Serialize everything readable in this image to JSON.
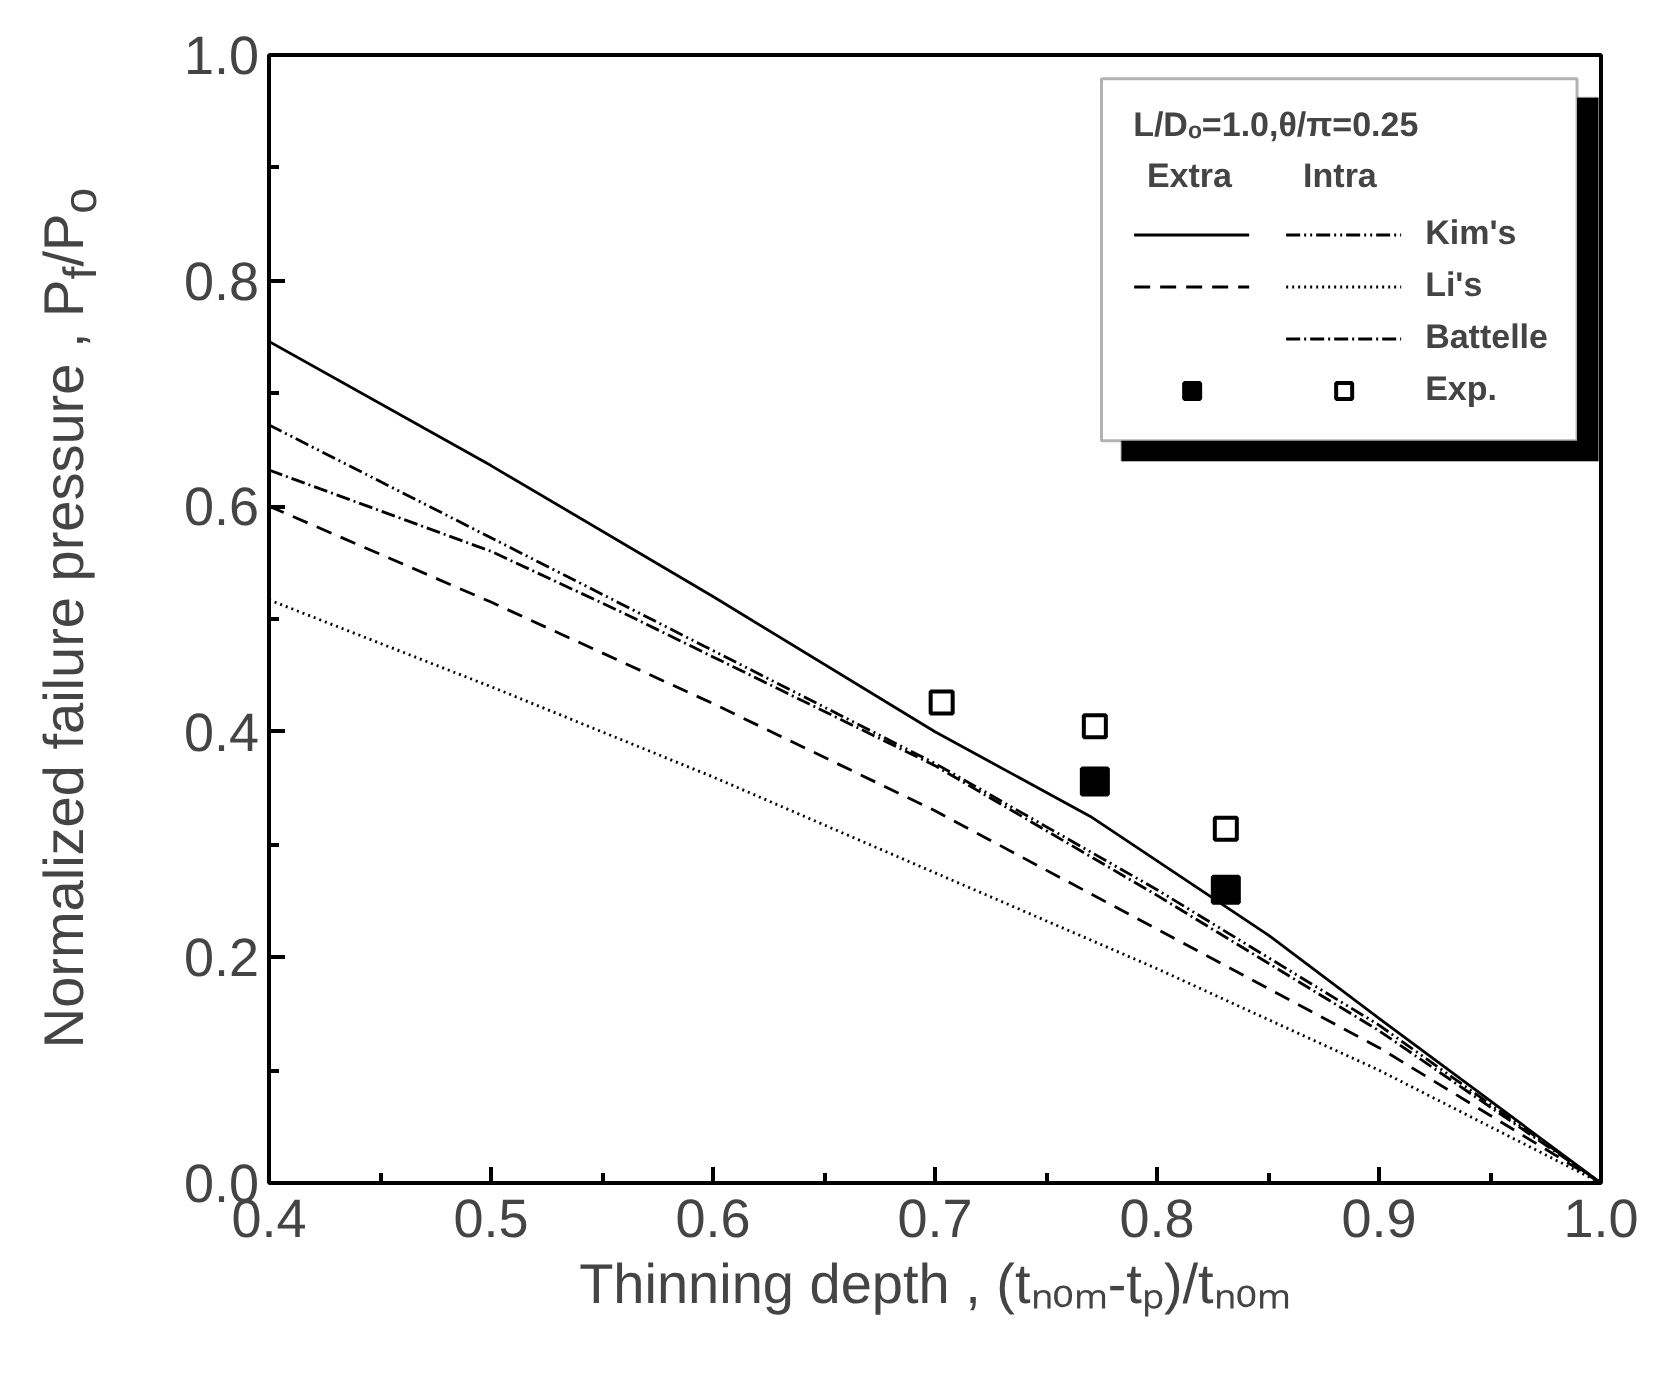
{
  "chart_data": {
    "type": "line",
    "xlabel": "Thinning depth , (tₙₒₘ-tₚ)/tₙₒₘ",
    "ylabel": "Normalized failure pressure , P$_{f}$/P$_{o}$",
    "legend_title": "L/Dₒ=1.0,θ/π=0.25",
    "annotations": [
      "Extra",
      "Intra"
    ],
    "xlim": [
      0.4,
      1.0
    ],
    "ylim": [
      0.0,
      1.0
    ],
    "xticks": [
      {
        "value": 0.4,
        "label": "0.4"
      },
      {
        "value": 0.5,
        "label": "0.5"
      },
      {
        "value": 0.6,
        "label": "0.6"
      },
      {
        "value": 0.7,
        "label": "0.7"
      },
      {
        "value": 0.8,
        "label": "0.8"
      },
      {
        "value": 0.9,
        "label": "0.9"
      },
      {
        "value": 1.0,
        "label": "1.0"
      }
    ],
    "yticks": [
      {
        "value": 0.0,
        "label": "0.0"
      },
      {
        "value": 0.2,
        "label": "0.2"
      },
      {
        "value": 0.4,
        "label": "0.4"
      },
      {
        "value": 0.6,
        "label": "0.6"
      },
      {
        "value": 0.8,
        "label": "0.8"
      },
      {
        "value": 1.0,
        "label": "1.0"
      }
    ],
    "grid": false,
    "legend": "top right",
    "series": [
      {
        "color": "#000000",
        "line_style": "solid",
        "x": [
          0.4,
          0.5,
          0.6,
          0.7,
          0.77,
          0.85,
          0.9,
          1.0
        ],
        "values": [
          0.746,
          0.636,
          0.52,
          0.4,
          0.325,
          0.22,
          0.146,
          0.0
        ]
      },
      {
        "name": "Kim's",
        "color": "#000000",
        "line_style": "dashdotdot",
        "x": [
          0.4,
          0.5,
          0.6,
          0.7,
          0.8,
          0.9,
          1.0
        ],
        "values": [
          0.672,
          0.572,
          0.472,
          0.372,
          0.26,
          0.14,
          0.0
        ]
      },
      {
        "color": "#000000",
        "line_style": "dashed",
        "x": [
          0.4,
          0.5,
          0.6,
          0.7,
          0.8,
          0.9,
          1.0
        ],
        "values": [
          0.6,
          0.515,
          0.425,
          0.33,
          0.225,
          0.12,
          0.0
        ]
      },
      {
        "name": "Li's",
        "color": "#000000",
        "line_style": "dotted",
        "x": [
          0.4,
          0.5,
          0.6,
          0.7,
          0.8,
          0.9,
          1.0
        ],
        "values": [
          0.517,
          0.44,
          0.36,
          0.275,
          0.19,
          0.1,
          0.0
        ]
      },
      {
        "name": "Battelle",
        "color": "#000000",
        "line_style": "dashdot",
        "x": [
          0.4,
          0.5,
          0.56,
          0.7,
          0.8,
          0.9,
          1.0
        ],
        "values": [
          0.632,
          0.56,
          0.505,
          0.37,
          0.255,
          0.135,
          0.0
        ]
      },
      {
        "type": "scatter",
        "color": "#000000",
        "marker": "square",
        "x": [
          0.772,
          0.831
        ],
        "values": [
          0.356,
          0.26
        ]
      },
      {
        "name": "Exp.",
        "type": "scatter",
        "color": "#000000",
        "marker": "square_open",
        "x": [
          0.703,
          0.772,
          0.831
        ],
        "values": [
          0.426,
          0.405,
          0.314
        ]
      }
    ]
  }
}
